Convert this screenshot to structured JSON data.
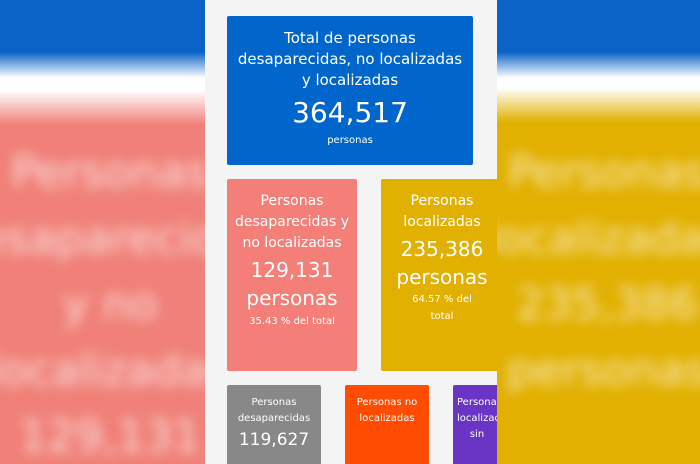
{
  "cards": [
    {
      "title": "Total de personas desaparecidas, no localizadas y localizadas",
      "value": "364,517",
      "unit": "personas"
    },
    {
      "title": "Personas desaparecidas y no localizadas",
      "value": "129,131",
      "unit": "personas",
      "share": "35.43 % del total"
    },
    {
      "title": "Personas localizadas",
      "value": "235,386",
      "unit": "personas",
      "share": "64.57 % del total"
    },
    {
      "title": "Personas desaparecidas",
      "value": "119,627"
    },
    {
      "title": "Personas no localizadas"
    },
    {
      "title": "Personas localizadas sin"
    }
  ]
}
